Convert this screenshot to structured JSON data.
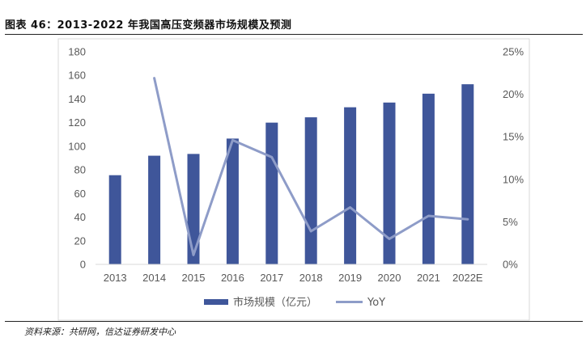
{
  "figure": {
    "title": "图表 46：2013-2022 年我国高压变频器市场规模及预测",
    "source": "资料来源：共研网，信达证券研发中心"
  },
  "chart_data": {
    "type": "bar",
    "categories": [
      "2013",
      "2014",
      "2015",
      "2016",
      "2017",
      "2018",
      "2019",
      "2020",
      "2021",
      "2022E"
    ],
    "series": [
      {
        "name": "市场规模（亿元）",
        "type": "bar",
        "axis": "left",
        "color": "#3F569A",
        "values": [
          75.5,
          92,
          93.5,
          106.5,
          120,
          124.5,
          133,
          137,
          144.5,
          152.5
        ]
      },
      {
        "name": "YoY",
        "type": "line",
        "axis": "right",
        "color": "#8E9CC8",
        "values": [
          null,
          21.9,
          1.1,
          14.6,
          12.6,
          3.9,
          6.7,
          3.0,
          5.7,
          5.3
        ]
      }
    ],
    "y_left": {
      "min": 0,
      "max": 180,
      "ticks": [
        0,
        20,
        40,
        60,
        80,
        100,
        120,
        140,
        160,
        180
      ]
    },
    "y_right": {
      "min": 0,
      "max": 25,
      "ticks": [
        "0%",
        "5%",
        "10%",
        "15%",
        "20%",
        "25%"
      ]
    },
    "grid": false,
    "legend_position": "bottom"
  }
}
